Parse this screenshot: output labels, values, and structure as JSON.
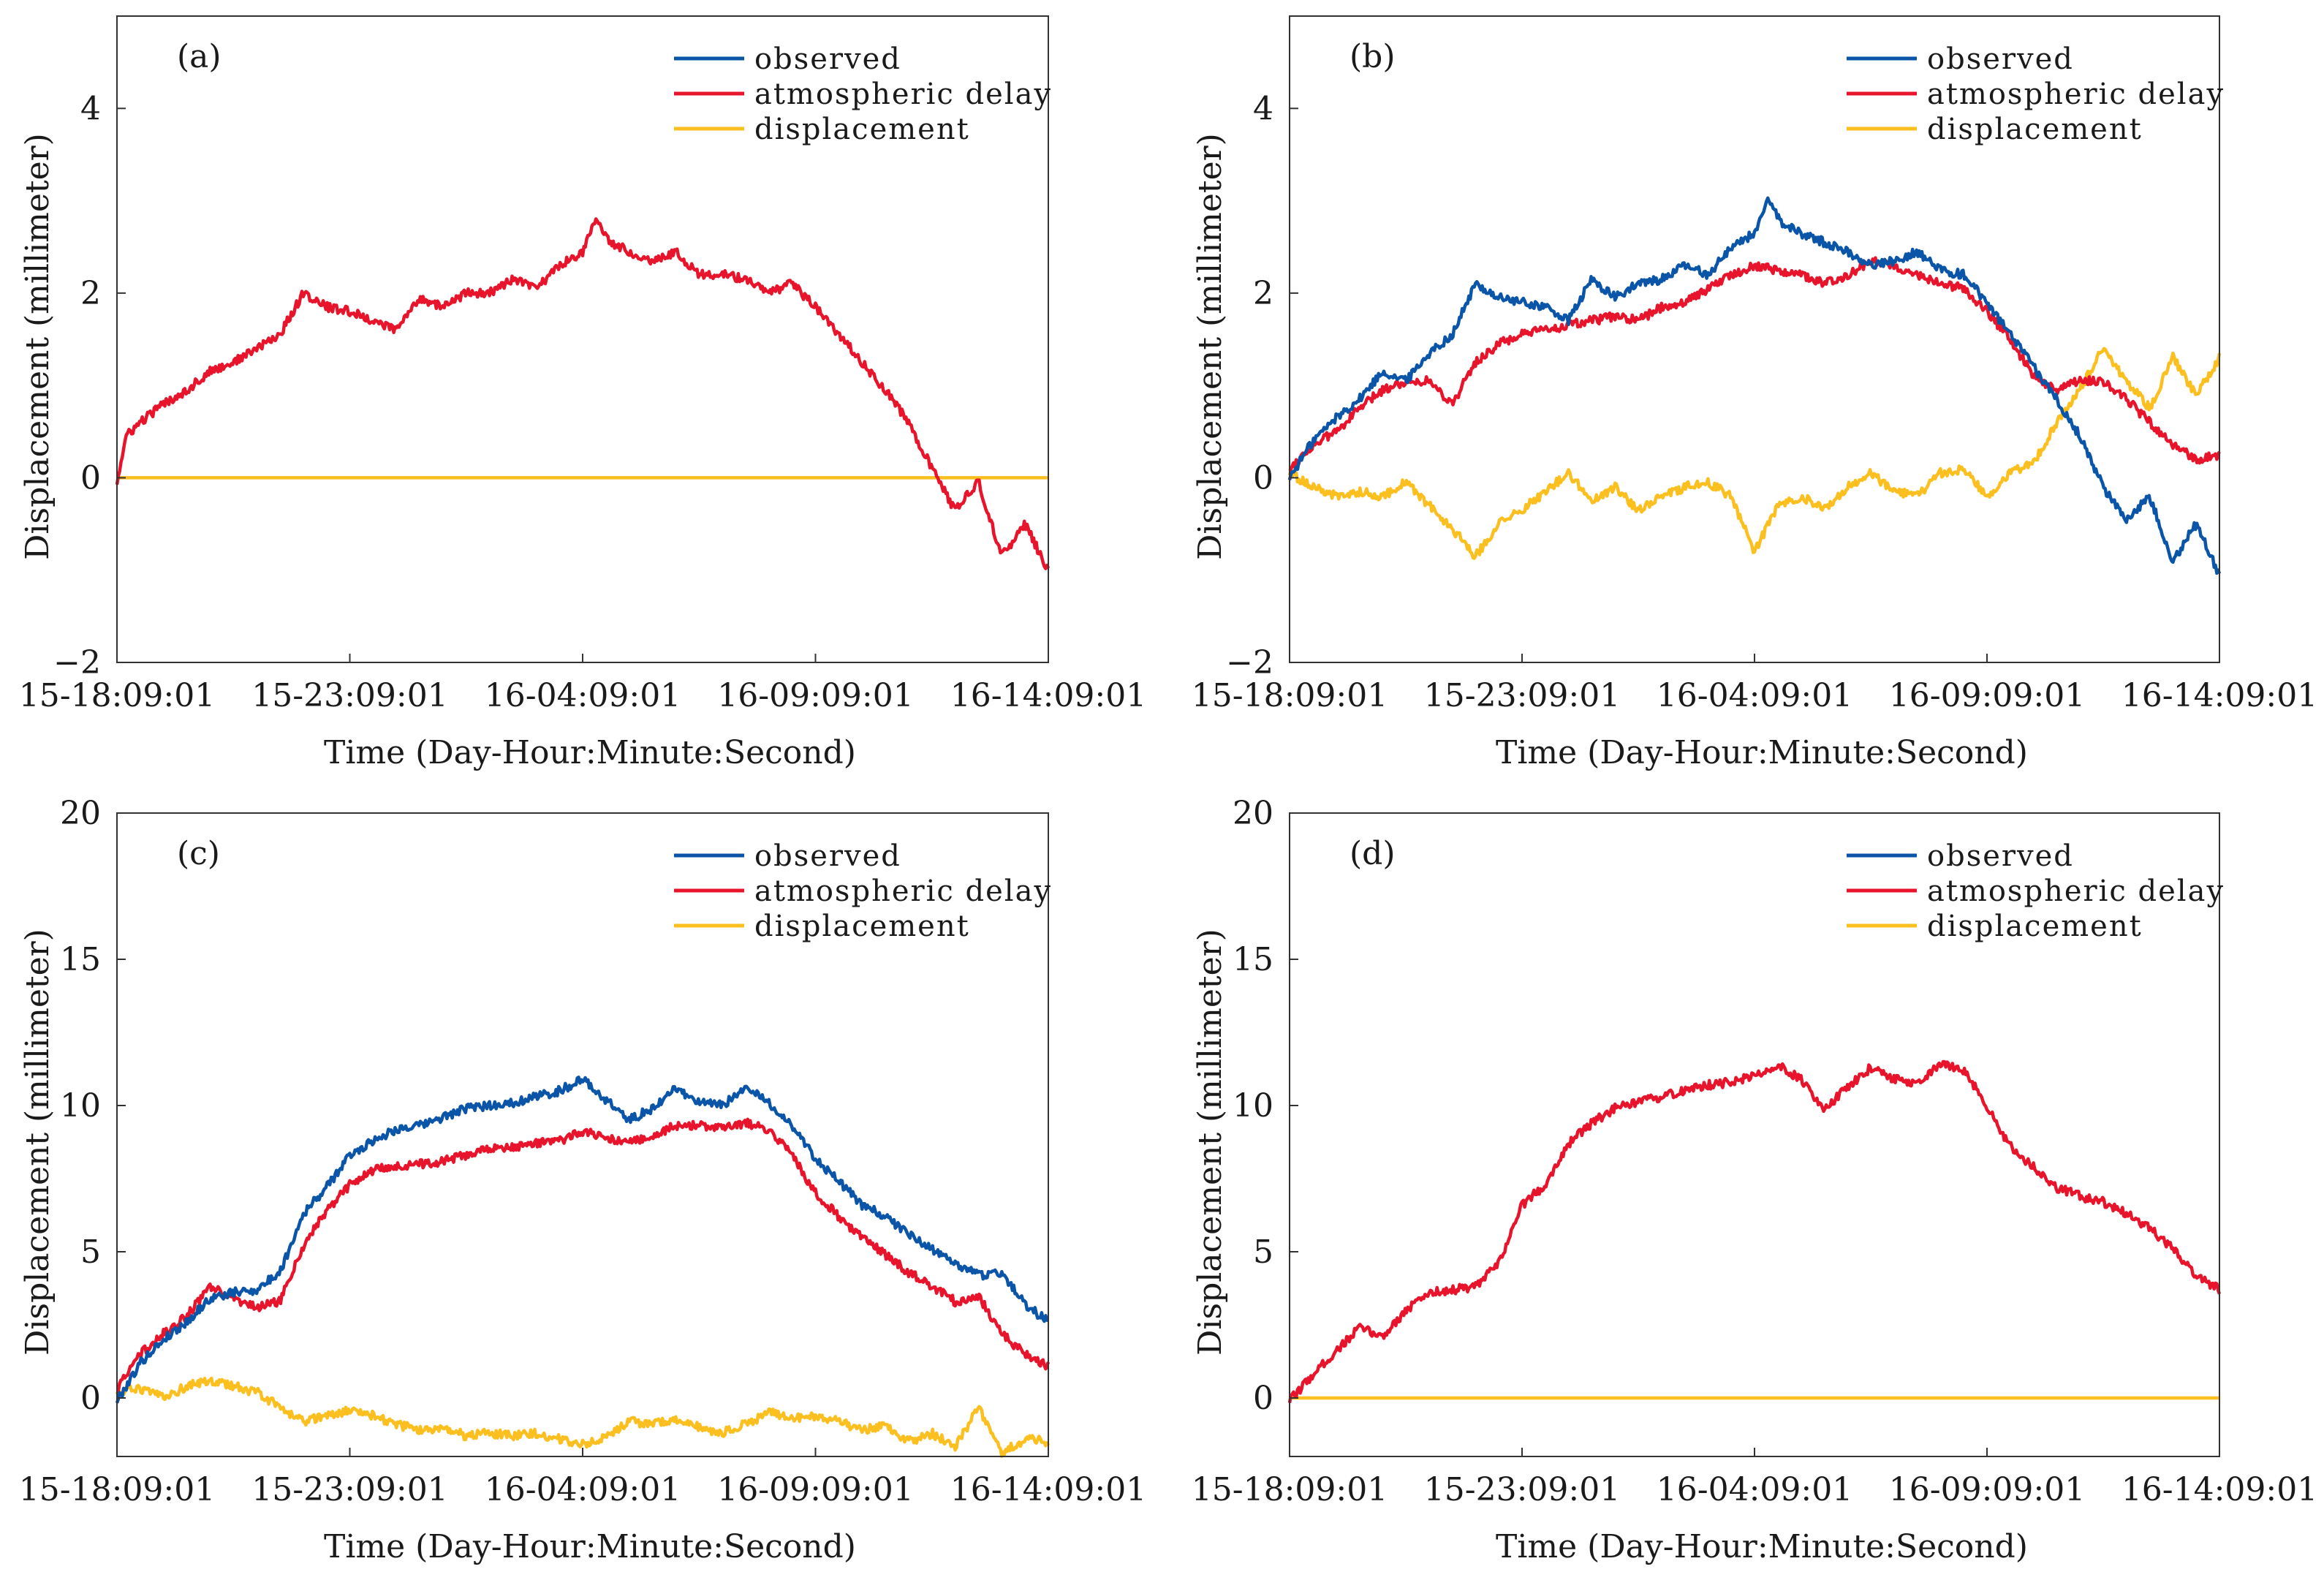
{
  "chart_data": [
    {
      "type": "line",
      "panel_label": "(a)",
      "xlabel": "Time (Day-Hour:Minute:Second)",
      "ylabel": "Displacement (millimeter)",
      "xlim": [
        0,
        20
      ],
      "ylim": [
        -2,
        5
      ],
      "x_ticks": [
        0,
        5,
        10,
        15,
        20
      ],
      "x_tick_labels": [
        "15-18:09:01",
        "15-23:09:01",
        "16-04:09:01",
        "16-09:09:01",
        "16-14:09:01"
      ],
      "y_ticks": [
        -2,
        0,
        2,
        4
      ],
      "y_tick_labels": [
        "−2",
        "0",
        "2",
        "4"
      ],
      "legend": {
        "position": "top-right",
        "entries": [
          "observed",
          "atmospheric delay",
          "displacement"
        ]
      },
      "series": [
        {
          "name": "observed",
          "color": "#0a55a8",
          "x": [],
          "y": []
        },
        {
          "name": "atmospheric delay",
          "color": "#e8142b",
          "x": [
            0,
            0.2,
            0.5,
            1,
            1.5,
            2,
            2.5,
            3,
            3.5,
            4,
            4.5,
            5,
            5.5,
            6,
            6.5,
            7,
            7.5,
            8,
            8.5,
            9,
            9.5,
            10,
            10.3,
            10.6,
            11,
            11.5,
            12,
            12.5,
            13,
            13.5,
            14,
            14.5,
            15,
            15.5,
            16,
            16.5,
            17,
            17.5,
            18,
            18.5,
            19,
            19.5,
            20
          ],
          "y": [
            -0.05,
            0.45,
            0.6,
            0.8,
            0.95,
            1.15,
            1.25,
            1.4,
            1.55,
            2.0,
            1.85,
            1.8,
            1.7,
            1.6,
            1.95,
            1.85,
            2.0,
            2.0,
            2.15,
            2.05,
            2.3,
            2.45,
            2.8,
            2.55,
            2.45,
            2.35,
            2.45,
            2.2,
            2.2,
            2.15,
            2.0,
            2.1,
            1.85,
            1.55,
            1.25,
            0.95,
            0.6,
            0.1,
            -0.35,
            -0.05,
            -0.85,
            -0.5,
            -1.0
          ]
        },
        {
          "name": "displacement",
          "color": "#fbbf1f",
          "x": [
            0,
            20
          ],
          "y": [
            0,
            0
          ]
        }
      ]
    },
    {
      "type": "line",
      "panel_label": "(b)",
      "xlabel": "Time (Day-Hour:Minute:Second)",
      "ylabel": "Displacement (millimeter)",
      "xlim": [
        0,
        20
      ],
      "ylim": [
        -2,
        5
      ],
      "x_ticks": [
        0,
        5,
        10,
        15,
        20
      ],
      "x_tick_labels": [
        "15-18:09:01",
        "15-23:09:01",
        "16-04:09:01",
        "16-09:09:01",
        "16-14:09:01"
      ],
      "y_ticks": [
        -2,
        0,
        2,
        4
      ],
      "y_tick_labels": [
        "−2",
        "0",
        "2",
        "4"
      ],
      "legend": {
        "position": "top-right",
        "entries": [
          "observed",
          "atmospheric delay",
          "displacement"
        ]
      },
      "series": [
        {
          "name": "observed",
          "color": "#0a55a8",
          "x": [
            0,
            0.5,
            1,
            1.5,
            2,
            2.5,
            3,
            3.5,
            4,
            4.5,
            5,
            5.5,
            6,
            6.5,
            7,
            7.5,
            8,
            8.5,
            9,
            9.5,
            10,
            10.3,
            10.6,
            11,
            11.5,
            12,
            12.5,
            13,
            13.5,
            14,
            14.5,
            15,
            15.5,
            16,
            16.5,
            17,
            17.5,
            18,
            18.5,
            19,
            19.5,
            20
          ],
          "y": [
            0.0,
            0.4,
            0.65,
            0.85,
            1.15,
            1.05,
            1.35,
            1.55,
            2.1,
            1.95,
            1.9,
            1.85,
            1.7,
            2.15,
            1.95,
            2.1,
            2.15,
            2.3,
            2.2,
            2.5,
            2.65,
            3.0,
            2.75,
            2.65,
            2.55,
            2.45,
            2.3,
            2.35,
            2.45,
            2.25,
            2.2,
            1.9,
            1.55,
            1.2,
            0.85,
            0.45,
            -0.1,
            -0.45,
            -0.2,
            -0.9,
            -0.5,
            -1.05
          ]
        },
        {
          "name": "atmospheric delay",
          "color": "#e8142b",
          "x": [
            0,
            0.5,
            1,
            1.5,
            2,
            2.5,
            3,
            3.5,
            4,
            4.5,
            5,
            5.5,
            6,
            6.5,
            7,
            7.5,
            8,
            8.5,
            9,
            9.5,
            10,
            10.5,
            11,
            11.5,
            12,
            12.5,
            13,
            13.5,
            14,
            14.5,
            15,
            15.5,
            16,
            16.5,
            17,
            17.5,
            18,
            18.5,
            19,
            19.5,
            20
          ],
          "y": [
            0.1,
            0.35,
            0.5,
            0.75,
            0.95,
            1.05,
            1.05,
            0.8,
            1.25,
            1.45,
            1.55,
            1.6,
            1.65,
            1.7,
            1.75,
            1.7,
            1.85,
            1.9,
            2.05,
            2.2,
            2.3,
            2.25,
            2.2,
            2.1,
            2.2,
            2.35,
            2.3,
            2.2,
            2.1,
            2.05,
            1.8,
            1.5,
            1.1,
            0.95,
            1.05,
            1.05,
            0.85,
            0.6,
            0.35,
            0.2,
            0.25
          ]
        },
        {
          "name": "displacement",
          "color": "#fbbf1f",
          "x": [
            0,
            0.5,
            1,
            1.5,
            2,
            2.5,
            3,
            3.5,
            4,
            4.5,
            5,
            5.5,
            6,
            6.5,
            7,
            7.5,
            8,
            8.5,
            9,
            9.5,
            10,
            10.5,
            11,
            11.5,
            12,
            12.5,
            13,
            13.5,
            14,
            14.5,
            15,
            15.5,
            16,
            16.5,
            17,
            17.5,
            18,
            18.5,
            19,
            19.5,
            20
          ],
          "y": [
            0.05,
            -0.1,
            -0.2,
            -0.15,
            -0.2,
            -0.05,
            -0.3,
            -0.55,
            -0.85,
            -0.5,
            -0.35,
            -0.15,
            0.05,
            -0.25,
            -0.1,
            -0.35,
            -0.2,
            -0.1,
            -0.05,
            -0.2,
            -0.8,
            -0.3,
            -0.2,
            -0.35,
            -0.1,
            0.05,
            -0.15,
            -0.2,
            0.05,
            0.1,
            -0.2,
            0.05,
            0.15,
            0.6,
            0.95,
            1.4,
            1.05,
            0.75,
            1.3,
            0.9,
            1.3
          ]
        }
      ]
    },
    {
      "type": "line",
      "panel_label": "(c)",
      "xlabel": "Time (Day-Hour:Minute:Second)",
      "ylabel": "Displacement (millimeter)",
      "xlim": [
        0,
        20
      ],
      "ylim": [
        -2,
        20
      ],
      "x_ticks": [
        0,
        5,
        10,
        15,
        20
      ],
      "x_tick_labels": [
        "15-18:09:01",
        "15-23:09:01",
        "16-04:09:01",
        "16-09:09:01",
        "16-14:09:01"
      ],
      "y_ticks": [
        0,
        5,
        10,
        15,
        20
      ],
      "y_tick_labels": [
        "0",
        "5",
        "10",
        "15",
        "20"
      ],
      "legend": {
        "position": "top-right",
        "entries": [
          "observed",
          "atmospheric delay",
          "displacement"
        ]
      },
      "series": [
        {
          "name": "observed",
          "color": "#0a55a8",
          "x": [
            0,
            0.5,
            1,
            1.5,
            2,
            2.5,
            3,
            3.5,
            4,
            4.5,
            5,
            5.5,
            6,
            6.5,
            7,
            7.5,
            8,
            8.5,
            9,
            9.5,
            10,
            10.5,
            11,
            11.5,
            12,
            12.5,
            13,
            13.5,
            14,
            14.5,
            15,
            15.5,
            16,
            16.5,
            17,
            17.5,
            18,
            18.5,
            19,
            19.5,
            20
          ],
          "y": [
            -0.1,
            1.2,
            2.0,
            2.6,
            3.4,
            3.6,
            3.7,
            4.3,
            6.3,
            7.2,
            8.3,
            8.8,
            9.2,
            9.3,
            9.6,
            9.9,
            10.0,
            10.1,
            10.3,
            10.5,
            10.9,
            10.2,
            9.5,
            9.9,
            10.6,
            10.1,
            10.0,
            10.6,
            10.1,
            9.3,
            8.2,
            7.4,
            6.6,
            6.2,
            5.6,
            5.1,
            4.6,
            4.2,
            4.3,
            3.2,
            2.6
          ]
        },
        {
          "name": "atmospheric delay",
          "color": "#e8142b",
          "x": [
            0,
            0.5,
            1,
            1.5,
            2,
            2.5,
            3,
            3.5,
            4,
            4.5,
            5,
            5.5,
            6,
            6.5,
            7,
            7.5,
            8,
            8.5,
            9,
            9.5,
            10,
            10.5,
            11,
            11.5,
            12,
            12.5,
            13,
            13.5,
            14,
            14.5,
            15,
            15.5,
            16,
            16.5,
            17,
            17.5,
            18,
            18.5,
            19,
            19.5,
            20
          ],
          "y": [
            0.3,
            1.5,
            2.2,
            2.8,
            3.8,
            3.4,
            3.1,
            3.3,
            5.2,
            6.4,
            7.3,
            7.8,
            7.9,
            8.0,
            8.1,
            8.3,
            8.5,
            8.6,
            8.7,
            8.8,
            9.1,
            8.9,
            8.7,
            9.0,
            9.3,
            9.3,
            9.2,
            9.4,
            9.2,
            8.3,
            7.0,
            6.2,
            5.5,
            4.9,
            4.3,
            3.8,
            3.3,
            3.5,
            2.2,
            1.5,
            1.1
          ]
        },
        {
          "name": "displacement",
          "color": "#fbbf1f",
          "x": [
            0,
            0.5,
            1,
            1.5,
            2,
            2.5,
            3,
            3.5,
            4,
            4.5,
            5,
            5.5,
            6,
            6.5,
            7,
            7.5,
            8,
            8.5,
            9,
            9.5,
            10,
            10.5,
            11,
            11.5,
            12,
            12.5,
            13,
            13.5,
            14,
            14.5,
            15,
            15.5,
            16,
            16.5,
            17,
            17.5,
            18,
            18.5,
            19,
            19.5,
            20
          ],
          "y": [
            0.2,
            0.3,
            0.0,
            0.4,
            0.6,
            0.4,
            0.2,
            -0.3,
            -0.8,
            -0.6,
            -0.4,
            -0.6,
            -0.9,
            -1.1,
            -1.0,
            -1.3,
            -1.2,
            -1.3,
            -1.2,
            -1.4,
            -1.6,
            -1.3,
            -0.8,
            -0.9,
            -0.7,
            -1.0,
            -1.2,
            -0.9,
            -0.5,
            -0.7,
            -0.6,
            -0.8,
            -1.1,
            -0.9,
            -1.5,
            -1.2,
            -1.7,
            -0.3,
            -1.9,
            -1.4,
            -1.5
          ]
        }
      ]
    },
    {
      "type": "line",
      "panel_label": "(d)",
      "xlabel": "Time (Day-Hour:Minute:Second)",
      "ylabel": "Displacement (millimeter)",
      "xlim": [
        0,
        20
      ],
      "ylim": [
        -2,
        20
      ],
      "x_ticks": [
        0,
        5,
        10,
        15,
        20
      ],
      "x_tick_labels": [
        "15-18:09:01",
        "15-23:09:01",
        "16-04:09:01",
        "16-09:09:01",
        "16-14:09:01"
      ],
      "y_ticks": [
        0,
        5,
        10,
        15,
        20
      ],
      "y_tick_labels": [
        "0",
        "5",
        "10",
        "15",
        "20"
      ],
      "legend": {
        "position": "top-right",
        "entries": [
          "observed",
          "atmospheric delay",
          "displacement"
        ]
      },
      "series": [
        {
          "name": "observed",
          "color": "#0a55a8",
          "x": [],
          "y": []
        },
        {
          "name": "atmospheric delay",
          "color": "#e8142b",
          "x": [
            0,
            0.5,
            1,
            1.5,
            2,
            2.5,
            3,
            3.5,
            4,
            4.5,
            5,
            5.5,
            6,
            6.5,
            7,
            7.5,
            8,
            8.5,
            9,
            9.5,
            10,
            10.5,
            11,
            11.5,
            12,
            12.5,
            13,
            13.5,
            14,
            14.5,
            15,
            15.5,
            16,
            16.5,
            17,
            17.5,
            18,
            18.5,
            19,
            19.5,
            20
          ],
          "y": [
            -0.1,
            0.8,
            1.6,
            2.4,
            2.1,
            3.0,
            3.6,
            3.7,
            3.8,
            4.6,
            6.6,
            7.3,
            8.7,
            9.4,
            9.9,
            10.1,
            10.3,
            10.5,
            10.7,
            10.8,
            11.0,
            11.4,
            10.9,
            9.9,
            10.6,
            11.3,
            10.9,
            10.7,
            11.4,
            11.2,
            10.0,
            8.6,
            7.9,
            7.2,
            6.9,
            6.7,
            6.3,
            5.8,
            5.1,
            4.2,
            3.7
          ]
        },
        {
          "name": "displacement",
          "color": "#fbbf1f",
          "x": [
            0,
            20
          ],
          "y": [
            0,
            0
          ]
        }
      ]
    }
  ]
}
